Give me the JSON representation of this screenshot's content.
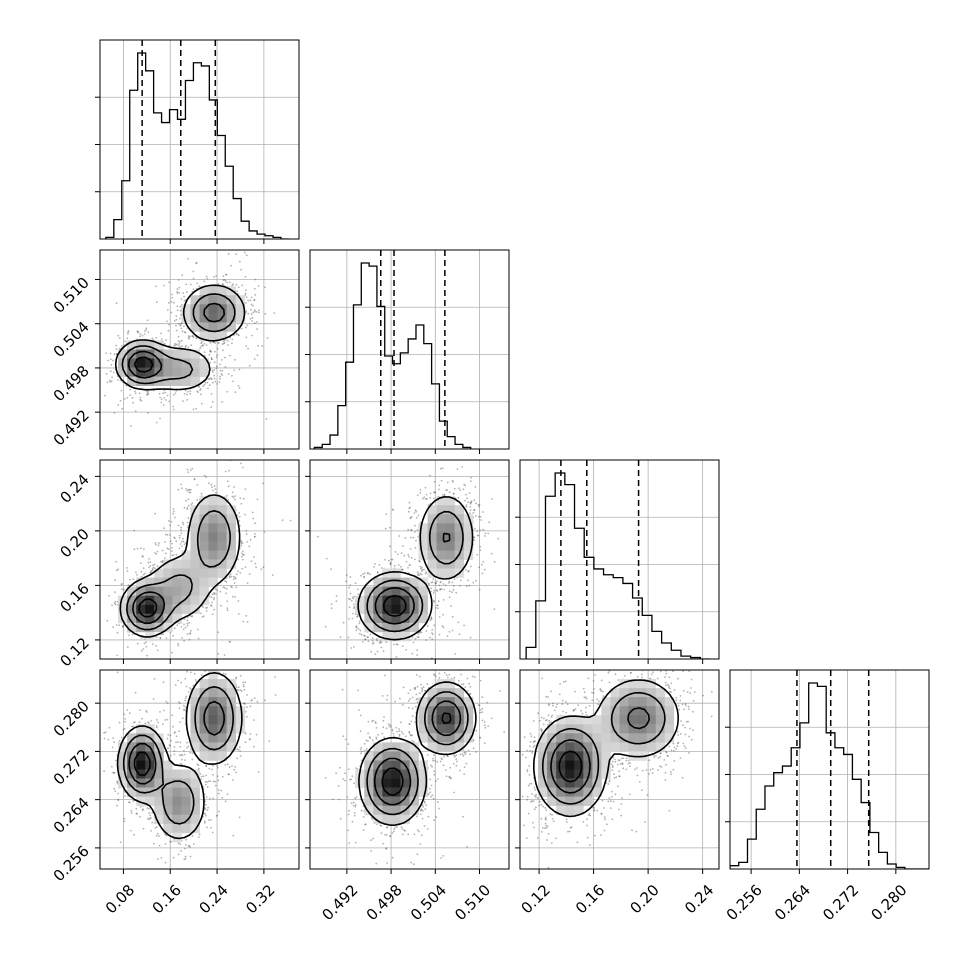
{
  "chart_data": {
    "type": "corner",
    "description_style": "histograms on diagonal with dashed quantile lines; 2D density with contours off-diagonal",
    "grid": true,
    "parameters": [
      {
        "range": [
          0.04,
          0.38
        ],
        "ticks": [
          0.08,
          0.16,
          0.24,
          0.32
        ],
        "tick_labels": [
          "0.08",
          "0.16",
          "0.24",
          "0.32"
        ],
        "quantiles": [
          0.112,
          0.178,
          0.237
        ],
        "hist": {
          "start": 0.05,
          "bin_width": 0.0136,
          "counts": [
            1,
            12,
            36,
            92,
            115,
            104,
            78,
            72,
            80,
            74,
            98,
            109,
            107,
            86,
            64,
            45,
            25,
            11,
            5,
            3,
            2,
            1,
            0
          ]
        },
        "modes": [
          {
            "mean": 0.112,
            "sd": 0.028,
            "weight": 0.45
          },
          {
            "mean": 0.235,
            "sd": 0.04,
            "weight": 0.55
          }
        ]
      },
      {
        "range": [
          0.487,
          0.514
        ],
        "ticks": [
          0.492,
          0.498,
          0.504,
          0.51
        ],
        "tick_labels": [
          "0.492",
          "0.498",
          "0.504",
          "0.510"
        ],
        "quantiles": [
          0.4966,
          0.4984,
          0.5053
        ],
        "hist": {
          "start": 0.4876,
          "bin_width": 0.00106,
          "counts": [
            1,
            3,
            9,
            28,
            56,
            93,
            120,
            118,
            92,
            60,
            55,
            62,
            71,
            80,
            68,
            42,
            18,
            8,
            3,
            1
          ]
        },
        "modes": [
          {
            "mean": 0.4984,
            "sd": 0.0018,
            "weight": 0.6
          },
          {
            "mean": 0.5055,
            "sd": 0.002,
            "weight": 0.4
          }
        ]
      },
      {
        "range": [
          0.106,
          0.252
        ],
        "ticks": [
          0.12,
          0.16,
          0.2,
          0.24
        ],
        "tick_labels": [
          "0.12",
          "0.16",
          "0.20",
          "0.24"
        ],
        "quantiles": [
          0.136,
          0.155,
          0.193
        ],
        "hist": {
          "start": 0.1105,
          "bin_width": 0.0071,
          "counts": [
            8,
            40,
            112,
            128,
            120,
            90,
            70,
            62,
            58,
            56,
            52,
            42,
            30,
            19,
            11,
            6,
            2,
            1,
            0
          ]
        },
        "modes": [
          {
            "mean": 0.143,
            "sd": 0.011,
            "weight": 0.6
          },
          {
            "mean": 0.193,
            "sd": 0.018,
            "weight": 0.4
          }
        ]
      },
      {
        "range": [
          0.2525,
          0.2855
        ],
        "ticks": [
          0.256,
          0.264,
          0.272,
          0.28
        ],
        "tick_labels": [
          "0.256",
          "0.264",
          "0.272",
          "0.280"
        ],
        "quantiles": [
          0.2636,
          0.2692,
          0.2755
        ],
        "hist": {
          "start": 0.2525,
          "bin_width": 0.00145,
          "counts": [
            2,
            4,
            18,
            36,
            50,
            58,
            62,
            73,
            88,
            112,
            110,
            82,
            73,
            69,
            54,
            40,
            22,
            10,
            3,
            1,
            0,
            0,
            0
          ]
        },
        "modes": [
          {
            "mean": 0.2695,
            "sd": 0.0045,
            "weight": 1.0
          }
        ]
      }
    ],
    "pairs": [
      {
        "row": 1,
        "col": 0,
        "blobs": [
          {
            "mx": 0.112,
            "my": 0.4985,
            "sx": 0.022,
            "sy": 0.0016,
            "w": 0.35
          },
          {
            "mx": 0.175,
            "my": 0.4978,
            "sx": 0.035,
            "sy": 0.0018,
            "w": 0.25
          },
          {
            "mx": 0.235,
            "my": 0.5055,
            "sx": 0.028,
            "sy": 0.002,
            "w": 0.4
          }
        ]
      },
      {
        "row": 2,
        "col": 0,
        "blobs": [
          {
            "mx": 0.12,
            "my": 0.143,
            "sx": 0.022,
            "sy": 0.01,
            "w": 0.35
          },
          {
            "mx": 0.175,
            "my": 0.158,
            "sx": 0.03,
            "sy": 0.014,
            "w": 0.25
          },
          {
            "mx": 0.235,
            "my": 0.195,
            "sx": 0.025,
            "sy": 0.018,
            "w": 0.4
          }
        ]
      },
      {
        "row": 2,
        "col": 1,
        "blobs": [
          {
            "mx": 0.4985,
            "my": 0.145,
            "sx": 0.0024,
            "sy": 0.012,
            "w": 0.6
          },
          {
            "mx": 0.5055,
            "my": 0.195,
            "sx": 0.002,
            "sy": 0.017,
            "w": 0.4
          }
        ]
      },
      {
        "row": 3,
        "col": 0,
        "blobs": [
          {
            "mx": 0.112,
            "my": 0.27,
            "sx": 0.02,
            "sy": 0.003,
            "w": 0.35
          },
          {
            "mx": 0.175,
            "my": 0.2635,
            "sx": 0.025,
            "sy": 0.0035,
            "w": 0.25
          },
          {
            "mx": 0.235,
            "my": 0.2775,
            "sx": 0.025,
            "sy": 0.004,
            "w": 0.4
          }
        ]
      },
      {
        "row": 3,
        "col": 1,
        "blobs": [
          {
            "mx": 0.4982,
            "my": 0.267,
            "sx": 0.0022,
            "sy": 0.0035,
            "w": 0.6
          },
          {
            "mx": 0.5055,
            "my": 0.2775,
            "sx": 0.002,
            "sy": 0.003,
            "w": 0.4
          }
        ]
      },
      {
        "row": 3,
        "col": 2,
        "blobs": [
          {
            "mx": 0.143,
            "my": 0.2695,
            "sx": 0.013,
            "sy": 0.004,
            "w": 0.6
          },
          {
            "mx": 0.193,
            "my": 0.2775,
            "sx": 0.016,
            "sy": 0.0035,
            "w": 0.4
          }
        ]
      }
    ]
  }
}
